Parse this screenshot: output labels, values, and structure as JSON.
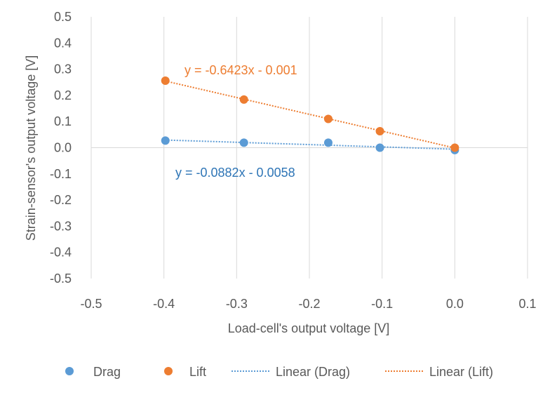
{
  "chart_data": {
    "type": "scatter",
    "title": "",
    "xlabel": "Load-cell's output voltage [V]",
    "ylabel": "Strain-sensor's output voltage [V]",
    "xlim": [
      -0.5,
      0.1
    ],
    "ylim": [
      -0.5,
      0.5
    ],
    "x_ticks": [
      "-0.5",
      "-0.4",
      "-0.3",
      "-0.2",
      "-0.1",
      "0.0",
      "0.1"
    ],
    "y_ticks": [
      "0.5",
      "0.4",
      "0.3",
      "0.2",
      "0.1",
      "0.0",
      "-0.1",
      "-0.2",
      "-0.3",
      "-0.4",
      "-0.5"
    ],
    "grid": "vertical",
    "legend_position": "bottom",
    "series": [
      {
        "name": "Drag",
        "color": "#5B9BD5",
        "points": [
          {
            "x": -0.398,
            "y": 0.027
          },
          {
            "x": -0.29,
            "y": 0.019
          },
          {
            "x": -0.174,
            "y": 0.019
          },
          {
            "x": -0.103,
            "y": 0.0
          },
          {
            "x": 0.0,
            "y": -0.009
          }
        ]
      },
      {
        "name": "Lift",
        "color": "#ED7D31",
        "points": [
          {
            "x": -0.398,
            "y": 0.256
          },
          {
            "x": -0.29,
            "y": 0.184
          },
          {
            "x": -0.174,
            "y": 0.11
          },
          {
            "x": -0.103,
            "y": 0.063
          },
          {
            "x": 0.0,
            "y": 0.0
          }
        ]
      }
    ],
    "trendlines": [
      {
        "name": "Linear (Drag)",
        "color": "#5B9BD5",
        "equation_color": "#2E75B6",
        "slope": -0.0882,
        "intercept": -0.0058,
        "x_range": [
          -0.398,
          0.0
        ],
        "equation": "y = -0.0882x - 0.0058"
      },
      {
        "name": "Linear (Lift)",
        "color": "#ED7D31",
        "equation_color": "#ED7D31",
        "slope": -0.6423,
        "intercept": -0.001,
        "x_range": [
          -0.398,
          0.0
        ],
        "equation": "y = -0.6423x - 0.001"
      }
    ]
  }
}
